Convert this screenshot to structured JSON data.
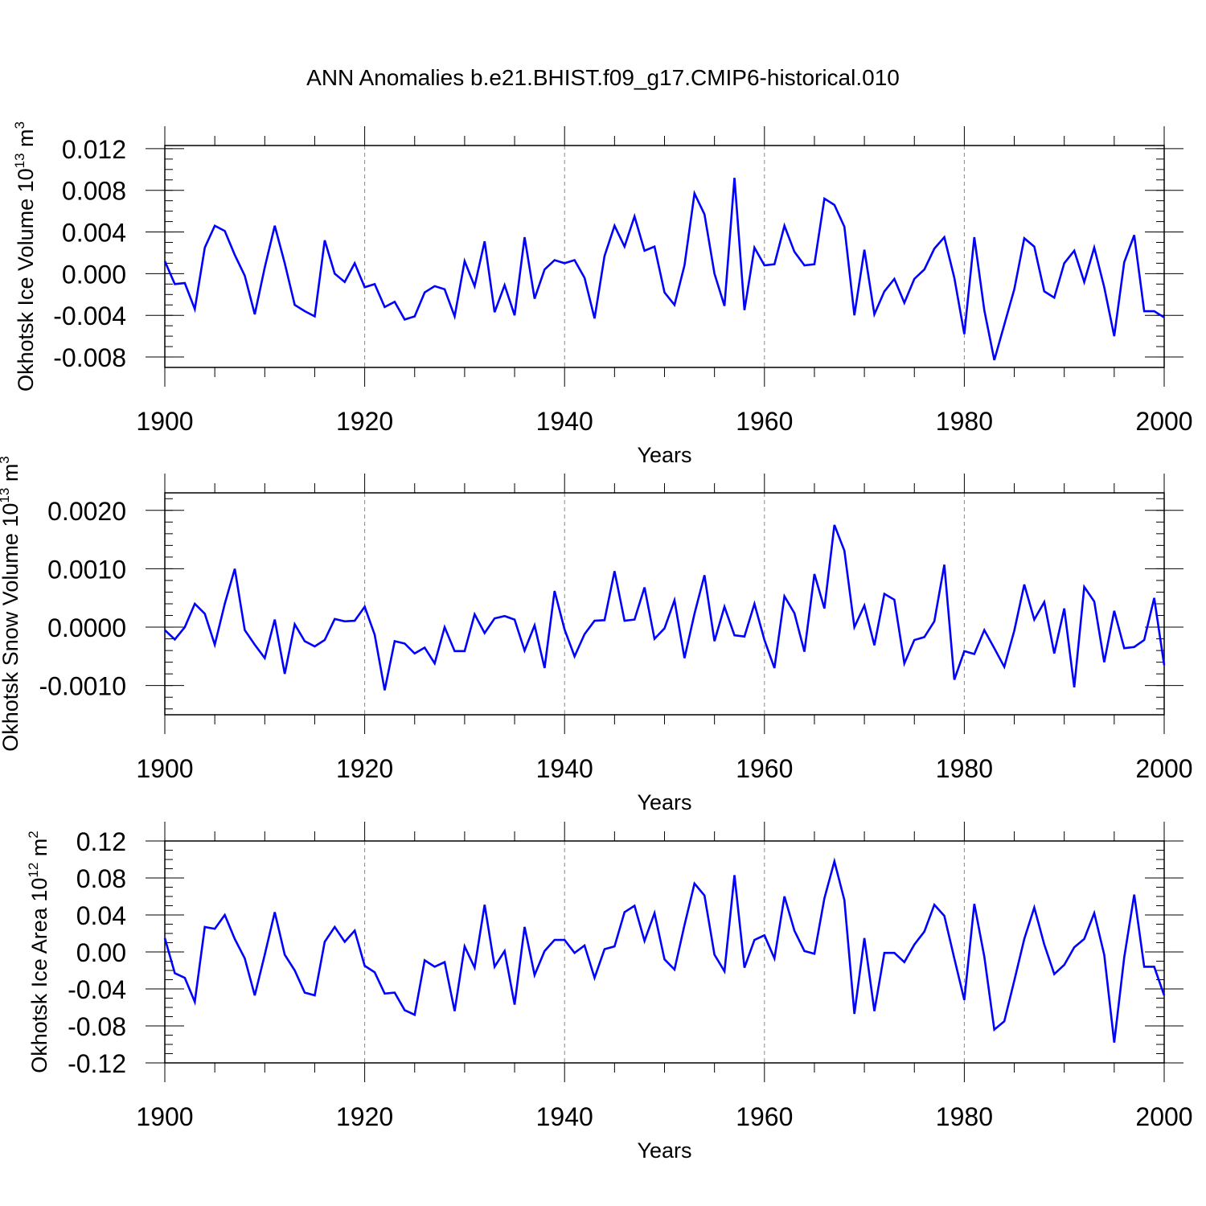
{
  "title": "ANN Anomalies b.e21.BHIST.f09_g17.CMIP6-historical.010",
  "colors": {
    "line": "#0000ff",
    "frame": "#000000",
    "grid": "#888888"
  },
  "chart_data": [
    {
      "type": "line",
      "ylabel_text": "Okhotsk Ice Volume 10",
      "ylabel_exp": "13",
      "ylabel_unit": " m",
      "ylabel_unit_exp": "3",
      "xlabel": "Years",
      "xlim": [
        1900,
        2000
      ],
      "ylim": [
        -0.009,
        0.0123
      ],
      "xticks": [
        "1900",
        "1920",
        "1940",
        "1960",
        "1980",
        "2000"
      ],
      "yticks": [
        {
          "value": 0.012,
          "label": "0.012"
        },
        {
          "value": 0.008,
          "label": "0.008"
        },
        {
          "value": 0.004,
          "label": "0.004"
        },
        {
          "value": 0.0,
          "label": "0.000"
        },
        {
          "value": -0.004,
          "label": "-0.004"
        },
        {
          "value": -0.008,
          "label": "-0.008"
        }
      ],
      "yminor_step": 0.001,
      "series": [
        {
          "name": "Okhotsk Ice Volume",
          "x_start": 1900,
          "values": [
            0.0012,
            -0.001,
            -0.0009,
            -0.0034,
            0.0025,
            0.0046,
            0.0041,
            0.0018,
            -0.0002,
            -0.0039,
            0.0006,
            0.0046,
            0.001,
            -0.003,
            -0.0036,
            -0.0041,
            0.0032,
            0.0,
            -0.0008,
            0.001,
            -0.0013,
            -0.001,
            -0.0032,
            -0.0027,
            -0.0044,
            -0.0041,
            -0.0018,
            -0.0012,
            -0.0015,
            -0.0041,
            0.0012,
            -0.0012,
            0.0031,
            -0.0037,
            -0.0011,
            -0.004,
            0.0035,
            -0.0024,
            0.0004,
            0.0013,
            0.001,
            0.0013,
            -0.0004,
            -0.0043,
            0.0017,
            0.0046,
            0.0026,
            0.0055,
            0.0022,
            0.0026,
            -0.0018,
            -0.003,
            0.0008,
            0.0077,
            0.0057,
            0.0,
            -0.0031,
            0.0092,
            -0.0035,
            0.0025,
            0.0008,
            0.0009,
            0.0046,
            0.0021,
            0.0008,
            0.0009,
            0.0072,
            0.0066,
            0.0045,
            -0.004,
            0.0023,
            -0.0039,
            -0.0017,
            -0.0005,
            -0.0028,
            -0.0005,
            0.0004,
            0.0024,
            0.0035,
            -0.0004,
            -0.0058,
            0.0035,
            -0.0035,
            -0.0083,
            -0.0049,
            -0.0015,
            0.0034,
            0.0026,
            -0.0017,
            -0.0023,
            0.001,
            0.0022,
            -0.0008,
            0.0025,
            -0.0013,
            -0.006,
            0.0011,
            0.0037,
            -0.0036,
            -0.0036,
            -0.0042
          ]
        }
      ]
    },
    {
      "type": "line",
      "ylabel_text": "Okhotsk Snow Volume 10",
      "ylabel_exp": "13",
      "ylabel_unit": " m",
      "ylabel_unit_exp": "3",
      "xlabel": "Years",
      "xlim": [
        1900,
        2000
      ],
      "ylim": [
        -0.0015,
        0.0023
      ],
      "xticks": [
        "1900",
        "1920",
        "1940",
        "1960",
        "1980",
        "2000"
      ],
      "yticks": [
        {
          "value": 0.002,
          "label": "0.0020"
        },
        {
          "value": 0.001,
          "label": "0.0010"
        },
        {
          "value": 0.0,
          "label": "0.0000"
        },
        {
          "value": -0.001,
          "label": "-0.0010"
        }
      ],
      "yminor_step": 0.0002,
      "series": [
        {
          "name": "Okhotsk Snow Volume",
          "x_start": 1900,
          "values": [
            -5e-05,
            -0.00021,
            0.0,
            0.0004,
            0.00023,
            -0.0003,
            0.0004,
            0.001,
            -5e-05,
            -0.0003,
            -0.00053,
            0.00013,
            -0.0008,
            5e-05,
            -0.00024,
            -0.00033,
            -0.00022,
            0.00014,
            0.0001,
            0.00011,
            0.00035,
            -0.00013,
            -0.00108,
            -0.00024,
            -0.00028,
            -0.00045,
            -0.00035,
            -0.00062,
            0.0,
            -0.00041,
            -0.00041,
            0.00022,
            -0.0001,
            0.00015,
            0.00019,
            0.00013,
            -0.0004,
            3e-05,
            -0.0007,
            0.00062,
            -4e-05,
            -0.0005,
            -0.00012,
            0.00011,
            0.00012,
            0.00096,
            0.00011,
            0.00013,
            0.00068,
            -0.0002,
            -2e-05,
            0.00046,
            -0.00053,
            0.00023,
            0.00089,
            -0.00024,
            0.00035,
            -0.00014,
            -0.00016,
            0.0004,
            -0.00022,
            -0.0007,
            0.00053,
            0.00024,
            -0.00042,
            0.00091,
            0.00032,
            0.00175,
            0.00131,
            0.0,
            0.00037,
            -0.00031,
            0.00057,
            0.00047,
            -0.00062,
            -0.00022,
            -0.00017,
            0.0001,
            0.00107,
            -0.0009,
            -0.00041,
            -0.00046,
            -5e-05,
            -0.00036,
            -0.00068,
            -6e-05,
            0.00073,
            0.00013,
            0.00043,
            -0.00045,
            0.00032,
            -0.00103,
            0.00069,
            0.00044,
            -0.0006,
            0.00028,
            -0.00036,
            -0.00034,
            -0.00022,
            0.0005,
            -0.00065
          ]
        }
      ]
    },
    {
      "type": "line",
      "ylabel_text": "Okhotsk Ice Area 10",
      "ylabel_exp": "12",
      "ylabel_unit": " m",
      "ylabel_unit_exp": "2",
      "xlabel": "Years",
      "xlim": [
        1900,
        2000
      ],
      "ylim": [
        -0.12,
        0.12
      ],
      "xticks": [
        "1900",
        "1920",
        "1940",
        "1960",
        "1980",
        "2000"
      ],
      "yticks": [
        {
          "value": 0.12,
          "label": "0.12"
        },
        {
          "value": 0.08,
          "label": "0.08"
        },
        {
          "value": 0.04,
          "label": "0.04"
        },
        {
          "value": 0.0,
          "label": "0.00"
        },
        {
          "value": -0.04,
          "label": "-0.04"
        },
        {
          "value": -0.08,
          "label": "-0.08"
        },
        {
          "value": -0.12,
          "label": "-0.12"
        }
      ],
      "yminor_step": 0.01,
      "series": [
        {
          "name": "Okhotsk Ice Area",
          "x_start": 1900,
          "values": [
            0.015,
            -0.023,
            -0.028,
            -0.054,
            0.027,
            0.025,
            0.04,
            0.014,
            -0.007,
            -0.047,
            -0.003,
            0.043,
            -0.003,
            -0.02,
            -0.044,
            -0.047,
            0.011,
            0.027,
            0.011,
            0.023,
            -0.015,
            -0.022,
            -0.045,
            -0.044,
            -0.063,
            -0.068,
            -0.009,
            -0.016,
            -0.011,
            -0.064,
            0.006,
            -0.017,
            0.051,
            -0.016,
            0.001,
            -0.057,
            0.027,
            -0.025,
            0.001,
            0.013,
            0.013,
            -0.001,
            0.007,
            -0.028,
            0.003,
            0.006,
            0.043,
            0.05,
            0.012,
            0.042,
            -0.008,
            -0.019,
            0.029,
            0.074,
            0.061,
            -0.003,
            -0.021,
            0.083,
            -0.017,
            0.013,
            0.018,
            -0.007,
            0.06,
            0.023,
            0.001,
            -0.002,
            0.058,
            0.098,
            0.056,
            -0.067,
            0.015,
            -0.064,
            -0.001,
            -0.001,
            -0.011,
            0.008,
            0.022,
            0.051,
            0.039,
            -0.007,
            -0.052,
            0.052,
            -0.005,
            -0.084,
            -0.075,
            -0.031,
            0.014,
            0.048,
            0.008,
            -0.024,
            -0.014,
            0.005,
            0.014,
            0.042,
            -0.003,
            -0.098,
            -0.006,
            0.062,
            -0.016,
            -0.016,
            -0.047
          ]
        }
      ]
    }
  ]
}
